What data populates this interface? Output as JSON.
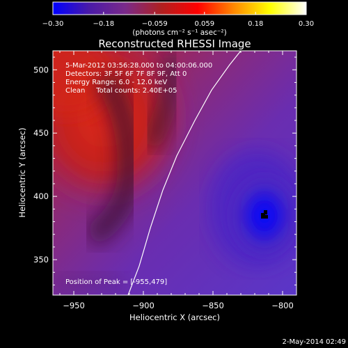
{
  "chart_data": {
    "type": "heatmap",
    "title": "Reconstructed RHESSI Image",
    "xlabel": "Heliocentric X (arcsec)",
    "ylabel": "Heliocentric Y (arcsec)",
    "xlim": [
      -965,
      -790
    ],
    "ylim": [
      322,
      515
    ],
    "x_ticks": [
      -950,
      -900,
      -850,
      -800
    ],
    "y_ticks": [
      350,
      400,
      450,
      500
    ],
    "colorbar": {
      "range": [
        -0.3,
        0.3
      ],
      "ticks": [
        "-0.30",
        "-0.18",
        "-0.059",
        "0.059",
        "0.18",
        "0.30"
      ],
      "unit": "(photons cm⁻² s⁻¹ asec⁻²)",
      "colors": [
        "#0000ff",
        "#4a1aa8",
        "#7a2a8a",
        "#b02020",
        "#ff0000",
        "#ff8800",
        "#ffff00",
        "#ffffff"
      ]
    },
    "annotations": [
      "5-Mar-2012 03:56:28.000 to 04:00:06.000",
      "Detectors: 3F 5F 6F 7F 8F 9F, Att 0",
      "Energy Range: 6.0 - 12.0 keV",
      "Clean     Total counts: 2.40E+05"
    ],
    "peak_label": "Position of Peak = [-955,479]",
    "peak": [
      -955,
      479
    ],
    "limb": [
      [
        -911,
        322
      ],
      [
        -903,
        345
      ],
      [
        -895,
        375
      ],
      [
        -886,
        405
      ],
      [
        -876,
        432
      ],
      [
        -863,
        460
      ],
      [
        -851,
        484
      ],
      [
        -838,
        504
      ],
      [
        -830,
        515
      ]
    ],
    "blue_source": [
      -800,
      383
    ]
  },
  "footer": {
    "date": "2-May-2014 02:49"
  }
}
